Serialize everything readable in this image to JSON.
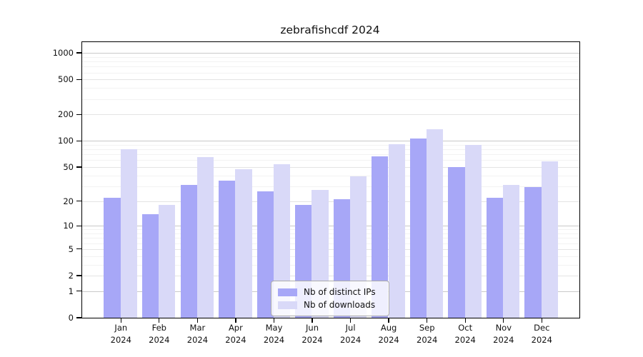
{
  "chart_data": {
    "type": "bar",
    "title": "zebrafishcdf 2024",
    "categories": [
      "Jan",
      "Feb",
      "Mar",
      "Apr",
      "May",
      "Jun",
      "Jul",
      "Aug",
      "Sep",
      "Oct",
      "Nov",
      "Dec"
    ],
    "year": "2024",
    "series": [
      {
        "name": "Nb of distinct IPs",
        "color": "#a7a7f7",
        "values": [
          22,
          14,
          31,
          35,
          26,
          18,
          21,
          66,
          107,
          50,
          22,
          29
        ]
      },
      {
        "name": "Nb of downloads",
        "color": "#d9d9f8",
        "values": [
          80,
          18,
          65,
          47,
          54,
          27,
          39,
          92,
          136,
          90,
          31,
          58
        ]
      }
    ],
    "y_axis": {
      "scale": "log10(value+1)",
      "ticks": [
        0,
        1,
        2,
        5,
        10,
        20,
        50,
        100,
        200,
        500,
        1000
      ],
      "range_max": 1300
    },
    "xlabel": "",
    "ylabel": "",
    "grid": true,
    "legend_position": "inside-bottom-center",
    "colors": {
      "axis": "#000000",
      "grid_decade": "#c9c9c9",
      "grid_labeled": "#e4e4e4",
      "grid_minor": "#f2f2f2",
      "background": "#ffffff"
    }
  }
}
